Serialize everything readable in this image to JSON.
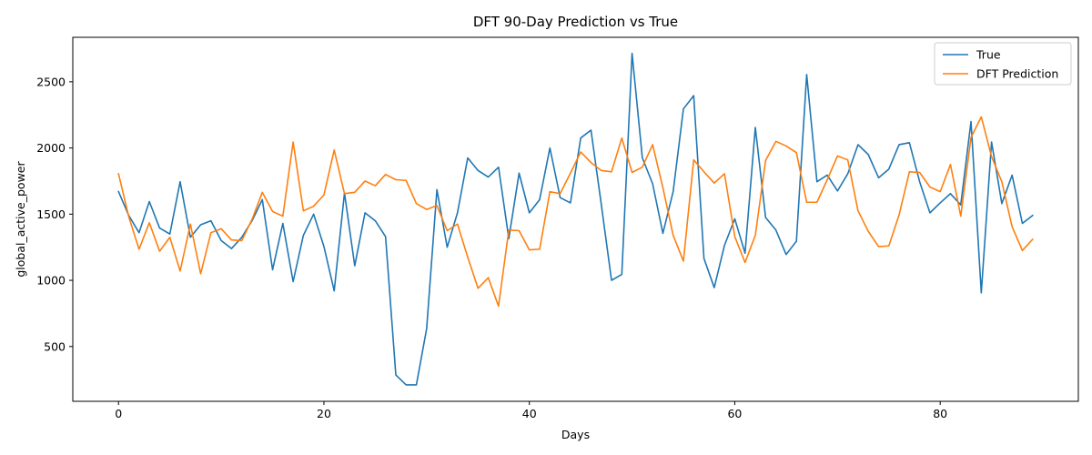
{
  "chart_data": {
    "type": "line",
    "title": "DFT 90-Day Prediction vs True",
    "xlabel": "Days",
    "ylabel": "global_active_power",
    "xlim": [
      -4.45,
      93.45
    ],
    "ylim": [
      86,
      2836
    ],
    "xticks": [
      0,
      20,
      40,
      60,
      80
    ],
    "yticks": [
      500,
      1000,
      1500,
      2000,
      2500
    ],
    "grid": false,
    "legend_position": "top-right",
    "x": [
      0,
      1,
      2,
      3,
      4,
      5,
      6,
      7,
      8,
      9,
      10,
      11,
      12,
      13,
      14,
      15,
      16,
      17,
      18,
      19,
      20,
      21,
      22,
      23,
      24,
      25,
      26,
      27,
      28,
      29,
      30,
      31,
      32,
      33,
      34,
      35,
      36,
      37,
      38,
      39,
      40,
      41,
      42,
      43,
      44,
      45,
      46,
      47,
      48,
      49,
      50,
      51,
      52,
      53,
      54,
      55,
      56,
      57,
      58,
      59,
      60,
      61,
      62,
      63,
      64,
      65,
      66,
      67,
      68,
      69,
      70,
      71,
      72,
      73,
      74,
      75,
      76,
      77,
      78,
      79,
      80,
      81,
      82,
      83,
      84,
      85,
      86,
      87,
      88,
      89
    ],
    "series": [
      {
        "name": "True",
        "color": "#1f77b4",
        "values": [
          1670,
          1490,
          1360,
          1595,
          1395,
          1350,
          1745,
          1325,
          1420,
          1450,
          1300,
          1240,
          1325,
          1450,
          1610,
          1080,
          1430,
          990,
          1340,
          1500,
          1255,
          920,
          1660,
          1110,
          1510,
          1450,
          1330,
          285,
          210,
          210,
          635,
          1685,
          1250,
          1510,
          1925,
          1830,
          1780,
          1855,
          1315,
          1810,
          1510,
          1610,
          2000,
          1625,
          1585,
          2075,
          2135,
          1575,
          1000,
          1045,
          2715,
          1925,
          1730,
          1355,
          1670,
          2295,
          2395,
          1165,
          945,
          1265,
          1465,
          1205,
          2155,
          1475,
          1380,
          1195,
          1295,
          2555,
          1745,
          1795,
          1675,
          1805,
          2025,
          1950,
          1775,
          1840,
          2025,
          2040,
          1745,
          1510,
          1585,
          1655,
          1570,
          2200,
          905,
          2045,
          1580,
          1795,
          1430,
          1490
        ]
      },
      {
        "name": "DFT Prediction",
        "color": "#ff7f0e",
        "values": [
          1805,
          1480,
          1235,
          1435,
          1220,
          1325,
          1070,
          1425,
          1050,
          1360,
          1390,
          1305,
          1300,
          1460,
          1665,
          1520,
          1485,
          2045,
          1525,
          1560,
          1645,
          1985,
          1655,
          1665,
          1750,
          1715,
          1800,
          1760,
          1755,
          1580,
          1535,
          1565,
          1375,
          1425,
          1175,
          940,
          1020,
          805,
          1380,
          1375,
          1230,
          1235,
          1670,
          1655,
          1810,
          1970,
          1890,
          1830,
          1820,
          2075,
          1815,
          1855,
          2025,
          1700,
          1340,
          1145,
          1910,
          1820,
          1735,
          1805,
          1330,
          1135,
          1340,
          1905,
          2050,
          2015,
          1965,
          1590,
          1590,
          1760,
          1940,
          1910,
          1525,
          1370,
          1255,
          1260,
          1495,
          1820,
          1815,
          1705,
          1670,
          1875,
          1485,
          2080,
          2235,
          1935,
          1745,
          1405,
          1225,
          1310
        ]
      }
    ]
  }
}
